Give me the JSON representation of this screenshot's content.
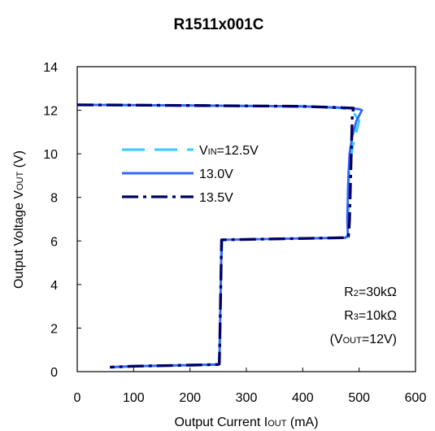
{
  "chart_data": {
    "type": "line",
    "title": "R1511x001C",
    "xlabel": {
      "main": "Output Current I",
      "sub": "OUT",
      "tail": " (mA)"
    },
    "ylabel": {
      "main": "Output Voltage V",
      "sub": "OUT",
      "tail": " (V)"
    },
    "xlim": [
      0,
      600
    ],
    "ylim": [
      0,
      14
    ],
    "xticks": [
      "0",
      "100",
      "200",
      "300",
      "400",
      "500",
      "600"
    ],
    "yticks": [
      "0",
      "2",
      "4",
      "6",
      "8",
      "10",
      "12",
      "14"
    ],
    "grid": false,
    "legend_position": "middle-left",
    "series": [
      {
        "name_main": "V",
        "name_sub": "IN",
        "name_tail": "=12.5V",
        "color": "#33ccff",
        "dash": "long-dash",
        "x": [
          0,
          200,
          400,
          470,
          490,
          500,
          490,
          485,
          482,
          480,
          481,
          480,
          479,
          480,
          478,
          475,
          300,
          257,
          255,
          254,
          253,
          252,
          250,
          200,
          100,
          58
        ],
        "y": [
          12.25,
          12.22,
          12.18,
          12.1,
          11.9,
          11.5,
          10.5,
          9.8,
          9.0,
          8.2,
          7.5,
          7.0,
          6.5,
          6.2,
          6.18,
          6.15,
          6.07,
          6.05,
          4.5,
          3.0,
          1.5,
          0.35,
          0.33,
          0.3,
          0.25,
          0.2
        ]
      },
      {
        "name_main": "13.0V",
        "name_sub": "",
        "name_tail": "",
        "color": "#3366ff",
        "dash": "solid",
        "x": [
          0,
          200,
          400,
          470,
          500,
          505,
          495,
          488,
          483,
          481,
          480,
          479,
          480,
          478,
          475,
          300,
          256,
          255,
          254,
          253,
          252,
          250,
          200,
          100,
          58
        ],
        "y": [
          12.25,
          12.22,
          12.18,
          12.12,
          12.05,
          12.0,
          11.5,
          10.8,
          10.0,
          9.0,
          8.0,
          7.0,
          6.3,
          6.18,
          6.15,
          6.07,
          6.05,
          4.5,
          3.0,
          1.5,
          0.35,
          0.33,
          0.3,
          0.25,
          0.2
        ]
      },
      {
        "name_main": "13.5V",
        "name_sub": "",
        "name_tail": "",
        "color": "#000066",
        "dash": "dash-dot",
        "x": [
          0,
          200,
          400,
          470,
          490,
          488,
          487,
          486,
          485,
          484,
          483,
          482,
          481,
          478,
          475,
          300,
          256,
          255,
          254,
          253,
          252,
          250,
          200,
          100,
          58
        ],
        "y": [
          12.25,
          12.22,
          12.18,
          12.12,
          12.1,
          11.8,
          11.0,
          10.0,
          9.0,
          8.0,
          7.0,
          6.5,
          6.2,
          6.18,
          6.15,
          6.07,
          6.05,
          4.5,
          3.0,
          1.5,
          0.35,
          0.33,
          0.3,
          0.25,
          0.2
        ]
      }
    ],
    "annotations": {
      "r2": {
        "pre": "R",
        "sub": "2",
        "post": "=30kΩ"
      },
      "r3": {
        "pre": "R",
        "sub": "3",
        "post": "=10kΩ"
      },
      "vout": {
        "pre": "(V",
        "sub": "OUT",
        "post": "=12V)"
      }
    }
  }
}
